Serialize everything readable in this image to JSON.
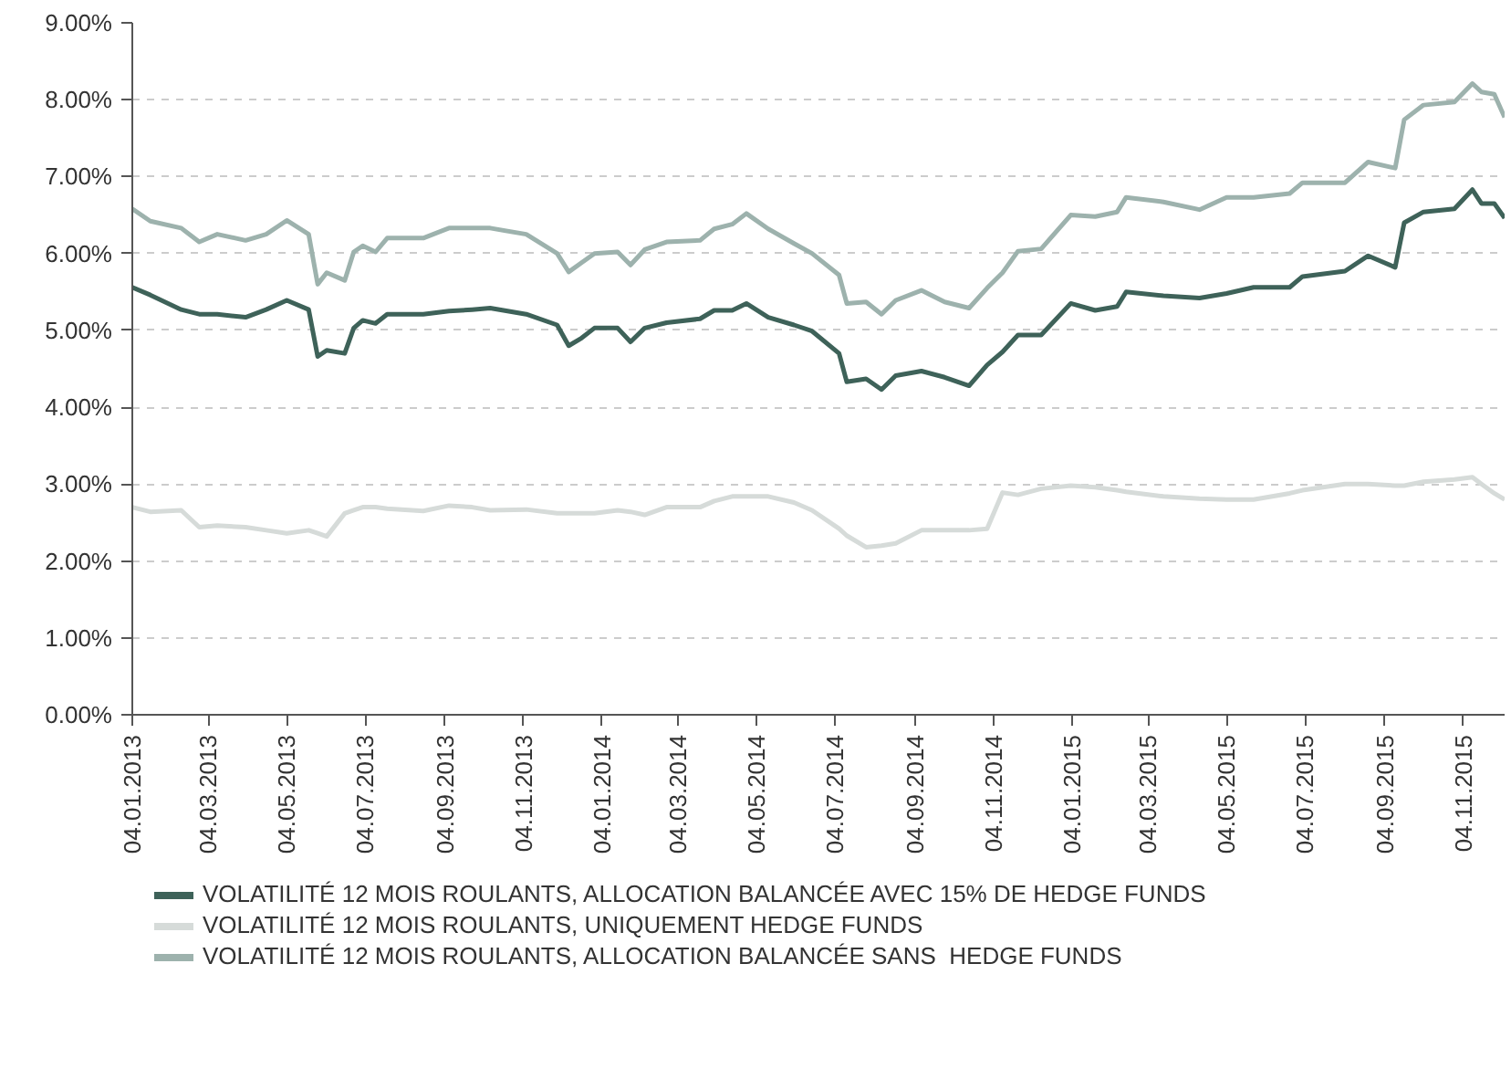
{
  "chart_data": {
    "type": "line",
    "x": [
      "2013-01-04",
      "2013-01-18",
      "2013-02-11",
      "2013-02-25",
      "2013-03-11",
      "2013-04-02",
      "2013-04-18",
      "2013-05-04",
      "2013-05-21",
      "2013-05-28",
      "2013-06-04",
      "2013-06-18",
      "2013-06-25",
      "2013-07-02",
      "2013-07-12",
      "2013-07-21",
      "2013-08-18",
      "2013-09-07",
      "2013-09-25",
      "2013-10-09",
      "2013-11-06",
      "2013-11-30",
      "2013-12-09",
      "2013-12-19",
      "2013-12-29",
      "2014-01-16",
      "2014-01-26",
      "2014-02-06",
      "2014-02-23",
      "2014-03-21",
      "2014-04-01",
      "2014-04-15",
      "2014-04-26",
      "2014-05-13",
      "2014-06-02",
      "2014-06-16",
      "2014-07-07",
      "2014-07-13",
      "2014-07-28",
      "2014-08-09",
      "2014-08-20",
      "2014-09-09",
      "2014-09-27",
      "2014-10-16",
      "2014-10-30",
      "2014-11-11",
      "2014-11-23",
      "2014-12-11",
      "2015-01-03",
      "2015-01-22",
      "2015-02-08",
      "2015-02-15",
      "2015-03-16",
      "2015-04-13",
      "2015-05-04",
      "2015-05-25",
      "2015-06-22",
      "2015-07-02",
      "2015-08-04",
      "2015-08-22",
      "2015-09-12",
      "2015-09-19",
      "2015-10-04",
      "2015-10-28",
      "2015-11-11",
      "2015-11-18",
      "2015-11-28",
      "2015-12-06"
    ],
    "series": [
      {
        "name": "VOLATILITÉ 12 MOIS ROULANTS, ALLOCATION BALANCÉE AVEC 15% DE HEDGE FUNDS",
        "color": "#3e6259",
        "values": [
          5.56,
          5.46,
          5.27,
          5.21,
          5.21,
          5.17,
          5.27,
          5.39,
          5.27,
          4.66,
          4.74,
          4.7,
          5.03,
          5.13,
          5.09,
          5.21,
          5.21,
          5.25,
          5.27,
          5.29,
          5.21,
          5.07,
          4.8,
          4.9,
          5.03,
          5.03,
          4.85,
          5.03,
          5.1,
          5.15,
          5.26,
          5.26,
          5.35,
          5.17,
          5.07,
          4.99,
          4.7,
          4.33,
          4.37,
          4.23,
          4.41,
          4.47,
          4.39,
          4.28,
          4.55,
          4.72,
          4.94,
          4.94,
          5.35,
          5.26,
          5.31,
          5.5,
          5.45,
          5.42,
          5.48,
          5.56,
          5.56,
          5.7,
          5.77,
          5.97,
          5.82,
          6.4,
          6.54,
          6.58,
          6.83,
          6.65,
          6.65,
          6.46
        ]
      },
      {
        "name": "VOLATILITÉ 12 MOIS ROULANTS, UNIQUEMENT HEDGE FUNDS",
        "color": "#d6dbd9",
        "values": [
          2.7,
          2.64,
          2.66,
          2.44,
          2.46,
          2.44,
          2.4,
          2.36,
          2.4,
          2.36,
          2.32,
          2.62,
          2.66,
          2.7,
          2.7,
          2.68,
          2.65,
          2.72,
          2.7,
          2.66,
          2.67,
          2.62,
          2.62,
          2.62,
          2.62,
          2.66,
          2.64,
          2.6,
          2.7,
          2.7,
          2.78,
          2.84,
          2.84,
          2.84,
          2.76,
          2.66,
          2.42,
          2.33,
          2.18,
          2.2,
          2.23,
          2.4,
          2.4,
          2.4,
          2.42,
          2.89,
          2.86,
          2.94,
          2.98,
          2.96,
          2.92,
          2.9,
          2.84,
          2.81,
          2.8,
          2.8,
          2.88,
          2.92,
          3.0,
          3.0,
          2.98,
          2.98,
          3.03,
          3.06,
          3.09,
          3.0,
          2.88,
          2.8
        ]
      },
      {
        "name": "VOLATILITÉ 12 MOIS ROULANTS, ALLOCATION BALANCÉE SANS  HEDGE FUNDS",
        "color": "#9db2ad",
        "values": [
          6.58,
          6.42,
          6.33,
          6.15,
          6.25,
          6.17,
          6.25,
          6.43,
          6.25,
          5.6,
          5.75,
          5.65,
          6.02,
          6.1,
          6.02,
          6.2,
          6.2,
          6.33,
          6.33,
          6.33,
          6.25,
          6.0,
          5.76,
          5.88,
          6.0,
          6.02,
          5.85,
          6.05,
          6.15,
          6.17,
          6.32,
          6.38,
          6.52,
          6.32,
          6.13,
          6.0,
          5.72,
          5.35,
          5.37,
          5.21,
          5.39,
          5.52,
          5.37,
          5.29,
          5.55,
          5.75,
          6.03,
          6.06,
          6.5,
          6.48,
          6.54,
          6.73,
          6.67,
          6.57,
          6.73,
          6.73,
          6.78,
          6.92,
          6.92,
          7.19,
          7.11,
          7.74,
          7.93,
          7.97,
          8.21,
          8.1,
          8.07,
          7.77
        ]
      }
    ],
    "xlim": [
      "2013-01-04",
      "2015-12-06"
    ],
    "xticks": [
      {
        "value": "2013-01-04",
        "label": "04.01.2013"
      },
      {
        "value": "2013-03-04",
        "label": "04.03.2013"
      },
      {
        "value": "2013-05-04",
        "label": "04.05.2013"
      },
      {
        "value": "2013-07-04",
        "label": "04.07.2013"
      },
      {
        "value": "2013-09-04",
        "label": "04.09.2013"
      },
      {
        "value": "2013-11-04",
        "label": "04.11.2013"
      },
      {
        "value": "2014-01-04",
        "label": "04.01.2014"
      },
      {
        "value": "2014-03-04",
        "label": "04.03.2014"
      },
      {
        "value": "2014-05-04",
        "label": "04.05.2014"
      },
      {
        "value": "2014-07-04",
        "label": "04.07.2014"
      },
      {
        "value": "2014-09-04",
        "label": "04.09.2014"
      },
      {
        "value": "2014-11-04",
        "label": "04.11.2014"
      },
      {
        "value": "2015-01-04",
        "label": "04.01.2015"
      },
      {
        "value": "2015-03-04",
        "label": "04.03.2015"
      },
      {
        "value": "2015-05-04",
        "label": "04.05.2015"
      },
      {
        "value": "2015-07-04",
        "label": "04.07.2015"
      },
      {
        "value": "2015-09-04",
        "label": "04.09.2015"
      },
      {
        "value": "2015-11-04",
        "label": "04.11.2015"
      }
    ],
    "ylim": [
      0,
      9
    ],
    "yticks": [
      {
        "value": 0,
        "label": "0.00%"
      },
      {
        "value": 1,
        "label": "1.00%"
      },
      {
        "value": 2,
        "label": "2.00%"
      },
      {
        "value": 3,
        "label": "3.00%"
      },
      {
        "value": 4,
        "label": "4.00%"
      },
      {
        "value": 5,
        "label": "5.00%"
      },
      {
        "value": 6,
        "label": "6.00%"
      },
      {
        "value": 7,
        "label": "7.00%"
      },
      {
        "value": 8,
        "label": "8.00%"
      },
      {
        "value": 9,
        "label": "9.00%"
      }
    ],
    "grid": "y",
    "legend": "bottom",
    "line_style": "solid",
    "marker": "none"
  }
}
